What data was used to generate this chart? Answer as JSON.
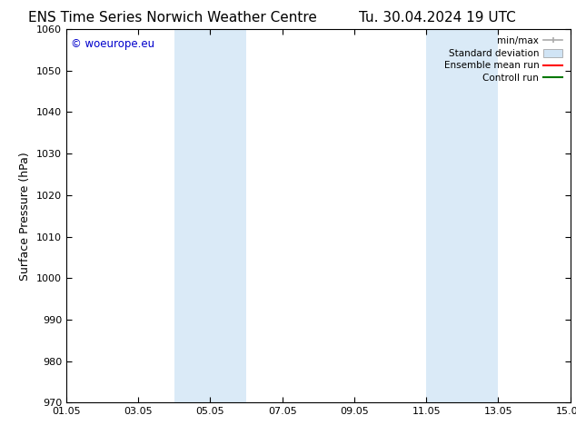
{
  "title_left": "ENS Time Series Norwich Weather Centre",
  "title_right": "Tu. 30.04.2024 19 UTC",
  "ylabel": "Surface Pressure (hPa)",
  "ylim": [
    970,
    1060
  ],
  "yticks": [
    970,
    980,
    990,
    1000,
    1010,
    1020,
    1030,
    1040,
    1050,
    1060
  ],
  "xtick_labels": [
    "01.05",
    "03.05",
    "05.05",
    "07.05",
    "09.05",
    "11.05",
    "13.05",
    "15.05"
  ],
  "xtick_positions": [
    0,
    2,
    4,
    6,
    8,
    10,
    12,
    14
  ],
  "xlim": [
    0,
    14
  ],
  "shaded_bands": [
    {
      "x_start": 3.0,
      "x_end": 5.0
    },
    {
      "x_start": 10.0,
      "x_end": 12.0
    }
  ],
  "shaded_color": "#daeaf7",
  "background_color": "#ffffff",
  "copyright_text": "© woeurope.eu",
  "copyright_color": "#0000cc",
  "legend_items": [
    {
      "label": "min/max",
      "color": "#aaaaaa",
      "style": "minmax"
    },
    {
      "label": "Standard deviation",
      "color": "#d0e4f5",
      "style": "band"
    },
    {
      "label": "Ensemble mean run",
      "color": "#ff0000",
      "style": "line"
    },
    {
      "label": "Controll run",
      "color": "#007700",
      "style": "line"
    }
  ],
  "title_fontsize": 11,
  "axis_fontsize": 9,
  "tick_fontsize": 8,
  "legend_fontsize": 7.5
}
